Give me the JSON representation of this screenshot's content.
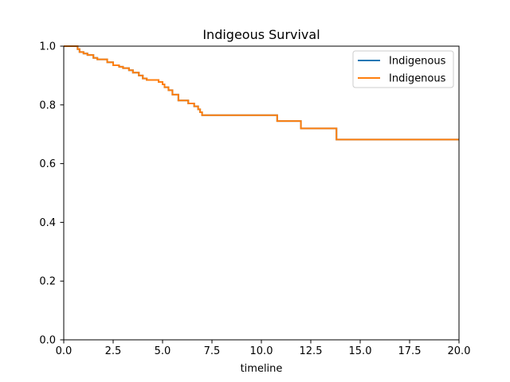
{
  "chart_data": {
    "type": "line",
    "title": "Indigeous Survival",
    "xlabel": "timeline",
    "ylabel": "",
    "xlim": [
      0,
      20
    ],
    "ylim": [
      0,
      1
    ],
    "xticks": [
      0,
      2.5,
      5,
      7.5,
      10,
      12.5,
      15,
      17.5,
      20
    ],
    "xtick_labels": [
      "0.0",
      "2.5",
      "5.0",
      "7.5",
      "10.0",
      "12.5",
      "15.0",
      "17.5",
      "20.0"
    ],
    "yticks": [
      0,
      0.2,
      0.4,
      0.6,
      0.8,
      1.0
    ],
    "ytick_labels": [
      "0.0",
      "0.2",
      "0.4",
      "0.6",
      "0.8",
      "1.0"
    ],
    "grid": false,
    "legend_position": "top-right",
    "step": true,
    "series": [
      {
        "name": "Indigenous",
        "color": "#1f77b4",
        "x": [
          0,
          0.7,
          0.8,
          1.0,
          1.2,
          1.5,
          1.7,
          2.2,
          2.5,
          2.8,
          3.0,
          3.3,
          3.5,
          3.8,
          4.0,
          4.2,
          4.8,
          5.0,
          5.1,
          5.3,
          5.5,
          5.8,
          6.3,
          6.6,
          6.8,
          6.9,
          7.0,
          10.8,
          12.0,
          13.8,
          20
        ],
        "y": [
          1.0,
          0.99,
          0.98,
          0.975,
          0.97,
          0.96,
          0.955,
          0.945,
          0.935,
          0.93,
          0.925,
          0.918,
          0.91,
          0.9,
          0.89,
          0.885,
          0.878,
          0.87,
          0.86,
          0.85,
          0.835,
          0.815,
          0.805,
          0.795,
          0.785,
          0.775,
          0.765,
          0.745,
          0.72,
          0.682,
          0.682
        ]
      },
      {
        "name": "Indigenous",
        "color": "#ff7f0e",
        "x": [
          0,
          0.7,
          0.8,
          1.0,
          1.2,
          1.5,
          1.7,
          2.2,
          2.5,
          2.8,
          3.0,
          3.3,
          3.5,
          3.8,
          4.0,
          4.2,
          4.8,
          5.0,
          5.1,
          5.3,
          5.5,
          5.8,
          6.3,
          6.6,
          6.8,
          6.9,
          7.0,
          10.8,
          12.0,
          13.8,
          20
        ],
        "y": [
          1.0,
          0.99,
          0.98,
          0.975,
          0.97,
          0.96,
          0.955,
          0.945,
          0.935,
          0.93,
          0.925,
          0.918,
          0.91,
          0.9,
          0.89,
          0.885,
          0.878,
          0.87,
          0.86,
          0.85,
          0.835,
          0.815,
          0.805,
          0.795,
          0.785,
          0.775,
          0.765,
          0.745,
          0.72,
          0.682,
          0.682
        ]
      }
    ]
  }
}
